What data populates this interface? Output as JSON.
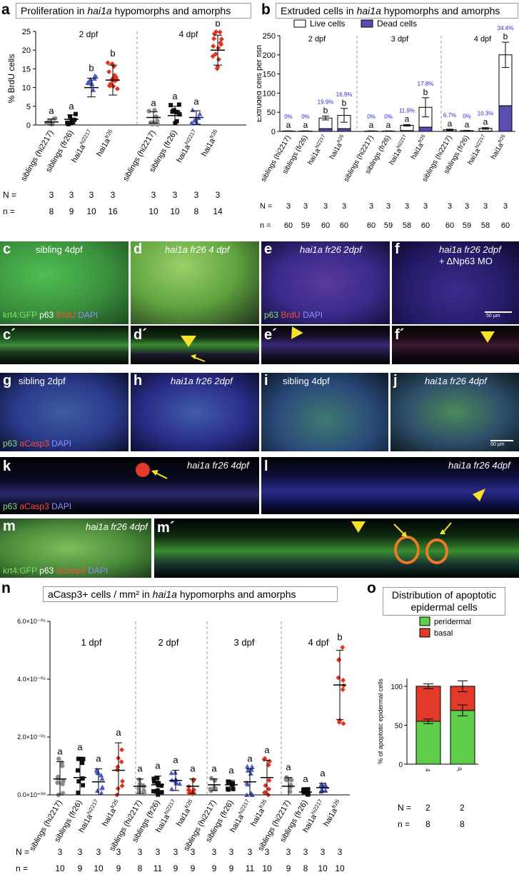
{
  "panel_a": {
    "letter": "a",
    "title": "Proliferation in hai1a hypomorphs and amorphs",
    "ylabel": "% BrdU cells",
    "ticks": [
      "0",
      "5",
      "10",
      "15",
      "20",
      "25"
    ],
    "stage_labels": [
      "2 dpf",
      "4 dpf"
    ],
    "group_labels": [
      "siblings (hi2217)",
      "siblings (fr26)",
      "hai1a hi2217",
      "hai1a fr26",
      "siblings (hi2217)",
      "siblings (fr26)",
      "hai1a hi2217",
      "hai1a fr26"
    ],
    "letters": [
      "a",
      "a",
      "b",
      "b",
      "a",
      "a",
      "a",
      "b"
    ],
    "N_label": "N =",
    "n_label": "n =",
    "N": [
      "3",
      "3",
      "3",
      "3",
      "3",
      "3",
      "3",
      "3"
    ],
    "n": [
      "8",
      "9",
      "10",
      "16",
      "10",
      "10",
      "8",
      "14"
    ]
  },
  "panel_b": {
    "letter": "b",
    "title": "Extruded cells in hai1a hypomorphs and amorphs",
    "legend_live": "Live cells",
    "legend_dead": "Dead cells",
    "ylabel": "Extruded cells per fish",
    "ticks": [
      "0",
      "50",
      "100",
      "150",
      "200",
      "250"
    ],
    "stage_labels": [
      "2 dpf",
      "3 dpf",
      "4 dpf"
    ],
    "percents": [
      "0%",
      "0%",
      "19.9%",
      "16.9%",
      "0%",
      "0%",
      "11.9%",
      "17.8%",
      "6.7%",
      "0%",
      "10.3%",
      "34.4%"
    ],
    "letters": [
      "a",
      "a",
      "b",
      "b",
      "a",
      "a",
      "a",
      "b",
      "a",
      "a",
      "a",
      "b"
    ],
    "group_labels": [
      "siblings (hi2217)",
      "siblings (fr26)",
      "hai1a hi2217",
      "hai1a fr26",
      "siblings (hi2217)",
      "siblings (fr26)",
      "hai1a hi2217",
      "hai1a fr26",
      "siblings (hi2217)",
      "siblings (fr26)",
      "hai1a hi2217",
      "hai1a fr26"
    ],
    "N_label": "N =",
    "n_label": "n =",
    "N": [
      "3",
      "3",
      "3",
      "3",
      "3",
      "3",
      "3",
      "3",
      "3",
      "3",
      "3",
      "3"
    ],
    "n": [
      "60",
      "59",
      "60",
      "60",
      "60",
      "59",
      "58",
      "60",
      "60",
      "59",
      "58",
      "60"
    ]
  },
  "micro_row1": {
    "c_letter": "c",
    "c_label": "sibling 4dpf",
    "c_legend": [
      "krt4:GFP",
      "p63",
      "BrdU",
      "DAPI"
    ],
    "d_letter": "d",
    "d_label": "hai1a fr26 4 dpf",
    "e_letter": "e",
    "e_label": "hai1a fr26 2dpf",
    "e_legend": [
      "p63",
      "BrdU",
      "DAPI"
    ],
    "f_letter": "f",
    "f_label": "hai1a fr26 2dpf",
    "f_label2": "+ ΔNp63 MO",
    "scale": "50 μm",
    "c2": "c´",
    "d2": "d´",
    "e2": "e´",
    "f2": "f´"
  },
  "micro_row2": {
    "g_letter": "g",
    "g_label": "sibling 2dpf",
    "g_legend": [
      "p63",
      "aCasp3",
      "DAPI"
    ],
    "h_letter": "h",
    "h_label": "hai1a fr26 2dpf",
    "i_letter": "i",
    "i_label": "sibling 4dpf",
    "j_letter": "j",
    "j_label": "hai1a fr26 4dpf",
    "scale": "50 μm",
    "k_letter": "k",
    "k_label": "hai1a fr26 4dpf",
    "k_legend": [
      "p63",
      "aCasp3",
      "DAPI"
    ],
    "l_letter": "l",
    "l_label": "hai1a fr26 4dpf",
    "m_letter": "m",
    "m_label": "hai1a fr26 4dpf",
    "m_legend": [
      "krt4:GFP",
      "p63",
      "aCasp3",
      "DAPI"
    ],
    "m2_letter": "m´"
  },
  "panel_n": {
    "letter": "n",
    "title": "aCasp3+ cells / mm² in hai1a hypomorphs and amorphs",
    "ticks": [
      "0.0×10⁺⁰⁰",
      "2.0×10⁻⁰⁵",
      "4.0×10⁻⁰⁵",
      "6.0×10⁻⁰⁵"
    ],
    "stage_labels": [
      "1 dpf",
      "2 dpf",
      "3 dpf",
      "4 dpf"
    ],
    "letters": [
      "a",
      "a",
      "a",
      "a",
      "a",
      "a",
      "a",
      "a",
      "a",
      "a",
      "a",
      "a",
      "a",
      "a",
      "a",
      "b"
    ],
    "group_labels": [
      "siblings (hi2217)",
      "siblings (fr26)",
      "hai1a hi2217",
      "hai1a fr26",
      "siblings (hi2217)",
      "siblings (fr26)",
      "hai1a hi2217",
      "hai1a fr26",
      "siblings (hi2217)",
      "siblings (fr26)",
      "hai1a hi2217",
      "hai1a fr26",
      "siblings (hi2217)",
      "siblings (fr26)",
      "hai1a hi2217",
      "hai1a fr26"
    ],
    "N_label": "N =",
    "n_label": "n =",
    "N": [
      "3",
      "3",
      "3",
      "3",
      "3",
      "3",
      "3",
      "3",
      "3",
      "3",
      "3",
      "3",
      "3",
      "3",
      "3",
      "3"
    ],
    "n": [
      "10",
      "9",
      "10",
      "9",
      "8",
      "11",
      "9",
      "9",
      "9",
      "9",
      "11",
      "10",
      "9",
      "8",
      "10",
      "10"
    ]
  },
  "panel_o": {
    "letter": "o",
    "title_line1": "Distribution of apoptotic",
    "title_line2": "epidermal cells",
    "legend": [
      "peridermal",
      "basal"
    ],
    "ylabel": "% of apoptotic epidermal cells",
    "ticks": [
      "0",
      "50",
      "100"
    ],
    "group_labels": [
      "siblings",
      "hai1a fr26"
    ],
    "N_label": "N =",
    "n_label": "n =",
    "N": [
      "2",
      "2"
    ],
    "n": [
      "8",
      "8"
    ]
  },
  "colors": {
    "grey": "#8c8c8c",
    "black": "#111111",
    "blue": "#4a5bbf",
    "red": "#e2331c",
    "dead": "#5a4fb0",
    "green": "#5fcf4b",
    "basal": "#e23a2a",
    "pct": "#2b2bd6"
  },
  "chart_data": [
    {
      "type": "scatter",
      "title": "Proliferation in hai1a hypomorphs and amorphs",
      "ylabel": "% BrdU cells",
      "ylim": [
        0,
        25
      ],
      "categories": [
        "siblings (hi2217) 2dpf",
        "siblings (fr26) 2dpf",
        "hai1a hi2217 2dpf",
        "hai1a fr26 2dpf",
        "siblings (hi2217) 4dpf",
        "siblings (fr26) 4dpf",
        "hai1a hi2217 4dpf",
        "hai1a fr26 4dpf"
      ],
      "series": [
        {
          "values": [
            0.8,
            1.5,
            10,
            12,
            2,
            2.5,
            2,
            20
          ]
        }
      ],
      "error": [
        0.8,
        1.2,
        2.5,
        4,
        1.5,
        2.5,
        1.8,
        4
      ],
      "grid": false
    },
    {
      "type": "bar",
      "title": "Extruded cells in hai1a hypomorphs and amorphs",
      "ylabel": "Extruded cells per fish",
      "ylim": [
        0,
        250
      ],
      "categories": [
        "siblings (hi2217) 2dpf",
        "siblings (fr26) 2dpf",
        "hai1a hi2217 2dpf",
        "hai1a fr26 2dpf",
        "siblings (hi2217) 3dpf",
        "siblings (fr26) 3dpf",
        "hai1a hi2217 3dpf",
        "hai1a fr26 3dpf",
        "siblings (hi2217) 4dpf",
        "siblings (fr26) 4dpf",
        "hai1a hi2217 4dpf",
        "hai1a fr26 4dpf"
      ],
      "series": [
        {
          "name": "Live cells",
          "values": [
            1,
            1,
            28,
            35,
            1,
            1,
            14,
            52,
            4,
            2,
            7,
            133
          ]
        },
        {
          "name": "Dead cells",
          "values": [
            0,
            0,
            7,
            7,
            0,
            0,
            2,
            11,
            0.3,
            0,
            0.8,
            67
          ]
        }
      ],
      "error": [
        0.5,
        0.5,
        5,
        18,
        0.5,
        0.5,
        2,
        25,
        1.5,
        0.5,
        2,
        33
      ],
      "percent_dead": [
        "0%",
        "0%",
        "19.9%",
        "16.9%",
        "0%",
        "0%",
        "11.9%",
        "17.8%",
        "6.7%",
        "0%",
        "10.3%",
        "34.4%"
      ]
    },
    {
      "type": "scatter",
      "title": "aCasp3+ cells / mm² in hai1a hypomorphs and amorphs",
      "ylim": [
        0,
        6e-05
      ],
      "categories": [
        "siblings (hi2217) 1dpf",
        "siblings (fr26) 1dpf",
        "hai1a hi2217 1dpf",
        "hai1a fr26 1dpf",
        "siblings (hi2217) 2dpf",
        "siblings (fr26) 2dpf",
        "hai1a hi2217 2dpf",
        "hai1a fr26 2dpf",
        "siblings (hi2217) 3dpf",
        "siblings (fr26) 3dpf",
        "hai1a hi2217 3dpf",
        "hai1a fr26 3dpf",
        "siblings (hi2217) 4dpf",
        "siblings (fr26) 4dpf",
        "hai1a hi2217 4dpf",
        "hai1a fr26 4dpf"
      ],
      "series": [
        {
          "values": [
            5.5e-06,
            6e-06,
            4.5e-06,
            8.5e-06,
            3e-06,
            3.5e-06,
            5e-06,
            3e-06,
            3.5e-06,
            3.5e-06,
            4.5e-06,
            6e-06,
            3e-06,
            1e-06,
            2.5e-06,
            3.8e-05
          ]
        }
      ],
      "error": [
        6e-06,
        7e-06,
        4.5e-06,
        9.5e-06,
        2.5e-06,
        3e-06,
        3.5e-06,
        2.5e-06,
        2e-06,
        1.5e-06,
        4.5e-06,
        6e-06,
        3e-06,
        1e-06,
        1.5e-06,
        1.2e-05
      ]
    },
    {
      "type": "bar",
      "title": "Distribution of apoptotic epidermal cells",
      "ylabel": "% of apoptotic epidermal cells",
      "ylim": [
        0,
        110
      ],
      "categories": [
        "siblings",
        "hai1a fr26"
      ],
      "series": [
        {
          "name": "peridermal",
          "values": [
            55,
            69
          ]
        },
        {
          "name": "basal",
          "values": [
            45,
            31
          ]
        }
      ],
      "error": [
        3,
        7
      ]
    }
  ]
}
